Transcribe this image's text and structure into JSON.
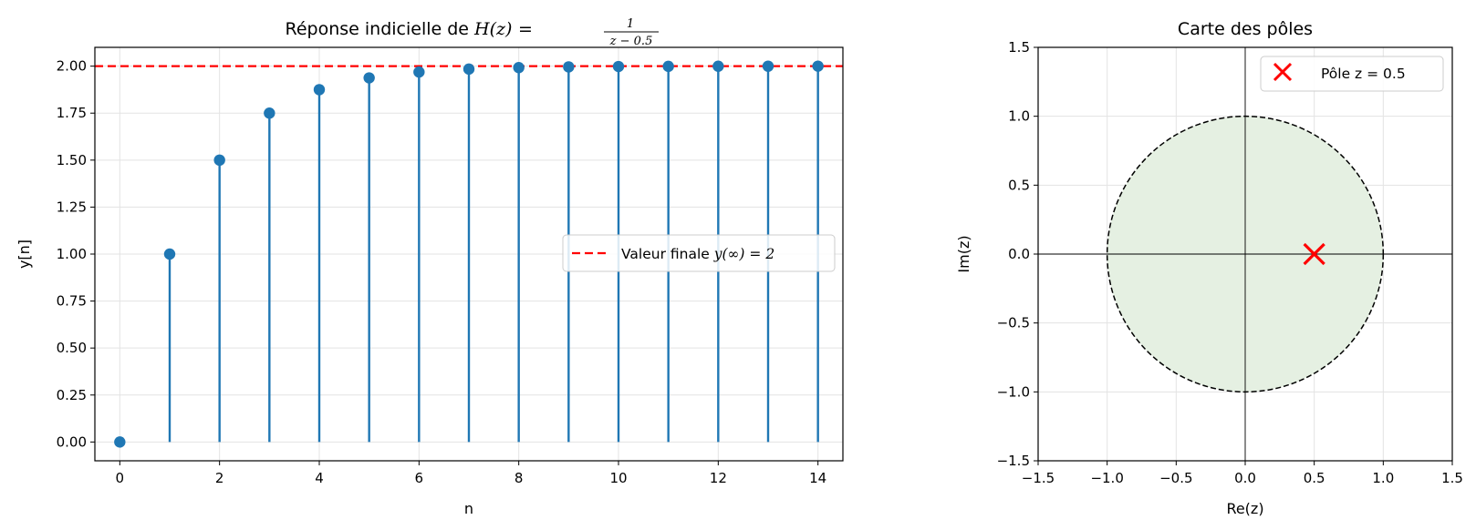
{
  "chart_data": [
    {
      "type": "stem",
      "title_prefix": "Réponse indicielle de ",
      "title_math": "H(z) = 1 / (z − 0.5)",
      "title_parts": {
        "lhs": "H(z)",
        "eq": "=",
        "num": "1",
        "den": "z − 0.5"
      },
      "xlabel": "n",
      "ylabel": "y[n]",
      "xlim": [
        -0.5,
        14.5
      ],
      "ylim": [
        -0.1,
        2.1
      ],
      "xticks": [
        0,
        2,
        4,
        6,
        8,
        10,
        12,
        14
      ],
      "xtick_labels": [
        "0",
        "2",
        "4",
        "6",
        "8",
        "10",
        "12",
        "14"
      ],
      "yticks": [
        0,
        0.25,
        0.5,
        0.75,
        1.0,
        1.25,
        1.5,
        1.75,
        2.0
      ],
      "ytick_labels": [
        "0.00",
        "0.25",
        "0.50",
        "0.75",
        "1.00",
        "1.25",
        "1.50",
        "1.75",
        "2.00"
      ],
      "grid": true,
      "x": [
        0,
        1,
        2,
        3,
        4,
        5,
        6,
        7,
        8,
        9,
        10,
        11,
        12,
        13,
        14
      ],
      "y": [
        0,
        1.0,
        1.5,
        1.75,
        1.875,
        1.9375,
        1.96875,
        1.984375,
        1.9921875,
        1.99609375,
        1.998046875,
        1.9990234375,
        1.99951171875,
        1.999755859375,
        1.9998779296875
      ],
      "reference_line": {
        "y": 2,
        "style": "dashed",
        "color": "#ff0000"
      },
      "legend": {
        "placement": "center-right",
        "entries": [
          {
            "label_text": "Valeur finale ",
            "label_math": "y(∞) = 2",
            "style": "dashed",
            "color": "#ff0000"
          }
        ]
      },
      "colors": {
        "stem": "#1f77b4",
        "reference": "#ff0000"
      }
    },
    {
      "type": "scatter",
      "title": "Carte des pôles",
      "xlabel": "Re(z)",
      "ylabel": "Im(z)",
      "xlim": [
        -1.5,
        1.5
      ],
      "ylim": [
        -1.5,
        1.5
      ],
      "xticks": [
        -1.5,
        -1.0,
        -0.5,
        0.0,
        0.5,
        1.0,
        1.5
      ],
      "xtick_labels": [
        "−1.5",
        "−1.0",
        "−0.5",
        "0.0",
        "0.5",
        "1.0",
        "1.5"
      ],
      "yticks": [
        -1.5,
        -1.0,
        -0.5,
        0.0,
        0.5,
        1.0,
        1.5
      ],
      "ytick_labels": [
        "−1.5",
        "−1.0",
        "−0.5",
        "0.0",
        "0.5",
        "1.0",
        "1.5"
      ],
      "grid": true,
      "unit_circle": {
        "radius": 1,
        "fill": "#e5f0e2",
        "edge": "dashed"
      },
      "poles": [
        {
          "re": 0.5,
          "im": 0.0,
          "marker": "x",
          "color": "#ff0000"
        }
      ],
      "legend": {
        "placement": "top-right",
        "entries": [
          {
            "label": "Pôle z = 0.5",
            "marker": "x",
            "color": "#ff0000"
          }
        ]
      }
    }
  ]
}
